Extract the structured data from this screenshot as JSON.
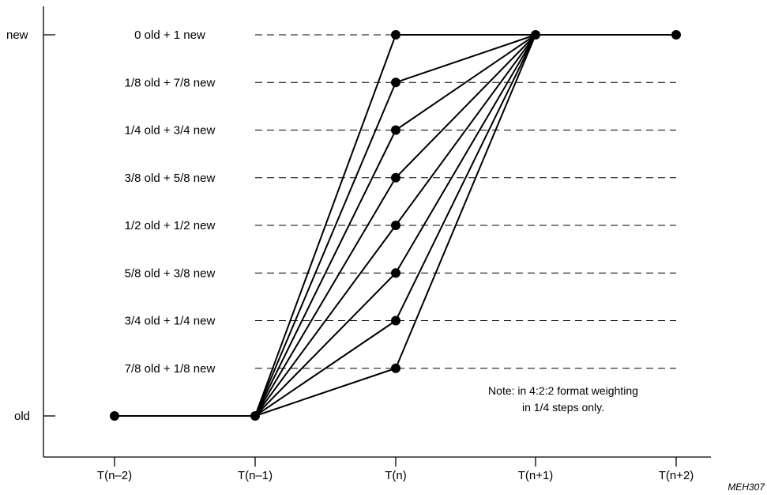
{
  "chart_data": {
    "type": "line",
    "x_categories": [
      "T(n–2)",
      "T(n–1)",
      "T(n)",
      "T(n+1)",
      "T(n+2)"
    ],
    "y_tick_labels": {
      "top": "new",
      "bottom": "old"
    },
    "ylim": [
      0,
      1
    ],
    "levels": [
      {
        "value": 1.0,
        "label": "0 old + 1 new"
      },
      {
        "value": 0.875,
        "label": "1/8 old + 7/8 new"
      },
      {
        "value": 0.75,
        "label": "1/4 old + 3/4 new"
      },
      {
        "value": 0.625,
        "label": "3/8 old + 5/8 new"
      },
      {
        "value": 0.5,
        "label": "1/2 old + 1/2 new"
      },
      {
        "value": 0.375,
        "label": "5/8 old + 3/8 new"
      },
      {
        "value": 0.25,
        "label": "3/4 old + 1/4 new"
      },
      {
        "value": 0.125,
        "label": "7/8 old + 1/8 new"
      }
    ],
    "baseline": [
      {
        "x": "T(n–2)",
        "y": 0
      },
      {
        "x": "T(n–1)",
        "y": 0
      }
    ],
    "final": [
      {
        "x": "T(n+1)",
        "y": 1
      },
      {
        "x": "T(n+2)",
        "y": 1
      }
    ],
    "transition_series": [
      {
        "values": [
          0,
          0,
          1.0,
          1,
          1
        ]
      },
      {
        "values": [
          0,
          0,
          0.875,
          1,
          1
        ]
      },
      {
        "values": [
          0,
          0,
          0.75,
          1,
          1
        ]
      },
      {
        "values": [
          0,
          0,
          0.625,
          1,
          1
        ]
      },
      {
        "values": [
          0,
          0,
          0.5,
          1,
          1
        ]
      },
      {
        "values": [
          0,
          0,
          0.375,
          1,
          1
        ]
      },
      {
        "values": [
          0,
          0,
          0.25,
          1,
          1
        ]
      },
      {
        "values": [
          0,
          0,
          0.125,
          1,
          1
        ]
      }
    ],
    "note_lines": [
      "Note: in 4:2:2 format weighting",
      "in 1/4 steps only."
    ],
    "figure_id": "MEH307",
    "grid": "dashed horizontal lines at each weighting level"
  }
}
